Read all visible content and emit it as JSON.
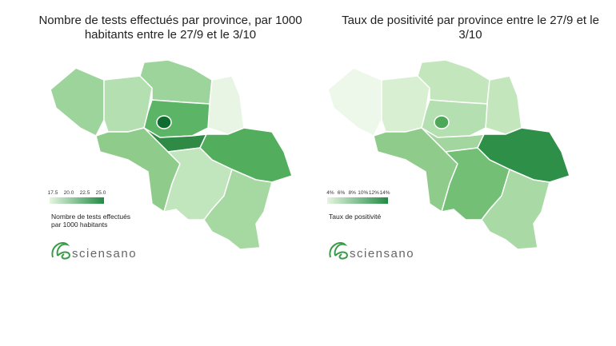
{
  "maps": [
    {
      "title": [
        "Nombre de tests effectués par province, par 1000",
        "habitants entre le 27/9 et le 3/10"
      ],
      "legend": {
        "ticks": [
          "17.5",
          "20.0",
          "22.5",
          "25.0"
        ],
        "title": [
          "Nombre de tests effectués",
          "par 1000 habitants"
        ],
        "colors": [
          "#e5f5e0",
          "#238b45"
        ]
      },
      "logo": "sciensano",
      "region_colors": [
        "#9dd49b",
        "#b4dfb0",
        "#9dd49b",
        "#e8f5e4",
        "#5cb566",
        "#0f6b30",
        "#2e8a45",
        "#8fcc8c",
        "#52ad5c",
        "#c1e5bc",
        "#a6d8a2"
      ]
    },
    {
      "title": [
        "Taux de positivité par province entre le 27/9 et le",
        "3/10"
      ],
      "legend": {
        "ticks": [
          "4%",
          "6%",
          "8%",
          "10%",
          "12%",
          "14%"
        ],
        "title": [
          "Taux de positivité"
        ],
        "colors": [
          "#e5f5e0",
          "#238b45"
        ]
      },
      "logo": "sciensano",
      "region_colors": [
        "#eef8ea",
        "#d8efd2",
        "#c4e6bd",
        "#c4e6bd",
        "#b4dfb0",
        "#4fa85a",
        "#a2d69e",
        "#8fcc8c",
        "#2e8f48",
        "#74bf76",
        "#a9d9a5"
      ]
    }
  ]
}
